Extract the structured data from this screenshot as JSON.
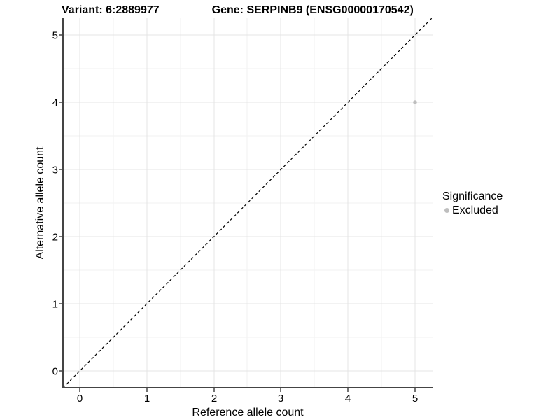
{
  "header": {
    "variant_label": "Variant: 6:2889977",
    "gene_label": "Gene: SERPINB9 (ENSG00000170542)"
  },
  "chart_data": {
    "type": "scatter",
    "title": "Variant: 6:2889977   Gene: SERPINB9 (ENSG00000170542)",
    "xlabel": "Reference allele count",
    "ylabel": "Alternative allele count",
    "xlim": [
      -0.25,
      5.25
    ],
    "ylim": [
      -0.25,
      5.25
    ],
    "x_ticks": [
      "0",
      "1",
      "2",
      "3",
      "4",
      "5"
    ],
    "y_ticks": [
      "0",
      "1",
      "2",
      "3",
      "4",
      "5"
    ],
    "grid": "on",
    "grid_minor": "on",
    "legend": {
      "position": "right",
      "title": "Significance",
      "items": [
        {
          "label": "Excluded",
          "color": "#bebebe",
          "marker": "circle"
        }
      ]
    },
    "series": [
      {
        "name": "Excluded",
        "color": "#bebebe",
        "points": [
          {
            "x": 5,
            "y": 4
          }
        ]
      }
    ],
    "reference_line": {
      "type": "identity",
      "style": "dashed",
      "color": "#000000",
      "from": [
        -0.25,
        -0.25
      ],
      "to": [
        5.25,
        5.25
      ]
    }
  },
  "colors": {
    "background": "#ffffff",
    "grid_major": "#e4e4e4",
    "grid_minor": "#f2f2f2",
    "axis_line": "#444444",
    "point": "#bebebe",
    "text": "#000000"
  }
}
